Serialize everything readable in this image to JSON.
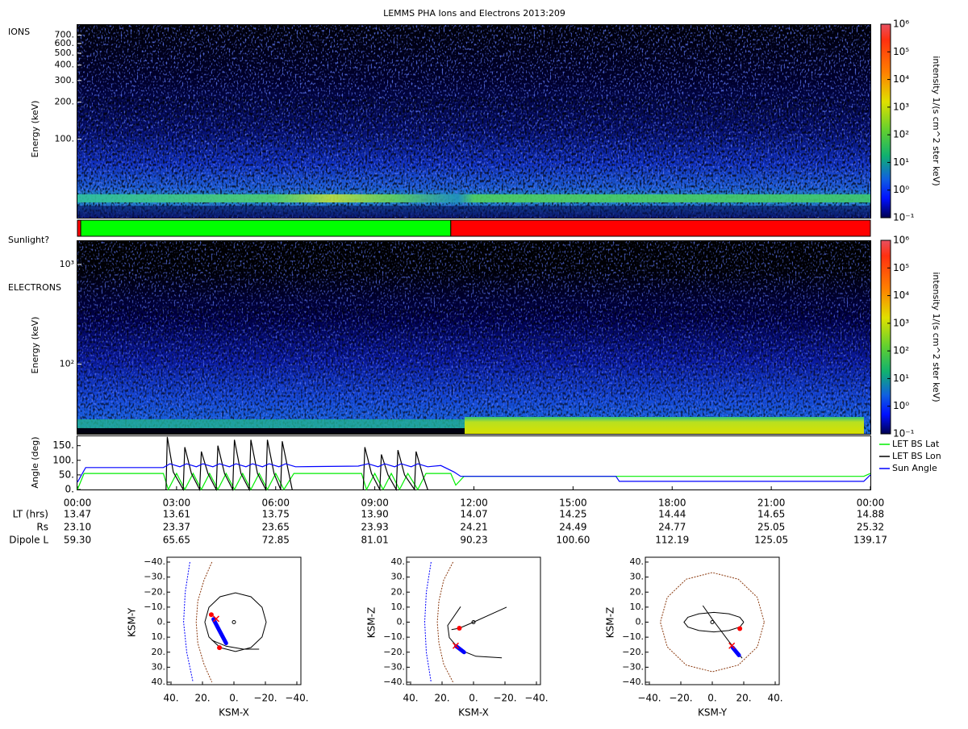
{
  "chart_data": [
    {
      "type": "heatmap",
      "title": "LEMMS PHA Ions and Electrons  2013:209",
      "label": "IONS",
      "ylabel": "Energy (keV)",
      "log_y": true,
      "xlim": [
        0,
        24
      ],
      "ylim": [
        23,
        860
      ],
      "yticks": [
        {
          "value": 100,
          "label": "100."
        },
        {
          "value": 200,
          "label": "200."
        },
        {
          "value": 300,
          "label": "300."
        },
        {
          "value": 400,
          "label": "400."
        },
        {
          "value": 500,
          "label": "500."
        },
        {
          "value": 600,
          "label": "600."
        },
        {
          "value": 700,
          "label": "700."
        }
      ],
      "colorbar": {
        "label": "intensity 1/(s cm^2 ster keV)",
        "log": true,
        "zlim": [
          0.1,
          1000000
        ],
        "zticks": [
          {
            "value": 0.1,
            "label": "10⁻¹"
          },
          {
            "value": 1,
            "label": "10⁰"
          },
          {
            "value": 10,
            "label": "10¹"
          },
          {
            "value": 100,
            "label": "10²"
          },
          {
            "value": 1000,
            "label": "10³"
          },
          {
            "value": 10000,
            "label": "10⁴"
          },
          {
            "value": 100000,
            "label": "10⁵"
          },
          {
            "value": 1000000,
            "label": "10⁶"
          }
        ]
      }
    },
    {
      "type": "timeline",
      "label": "Sunlight?",
      "xlim": [
        0,
        24
      ],
      "segments": [
        {
          "x": [
            0,
            0.1
          ],
          "color": "#ff0000"
        },
        {
          "x": [
            0.1,
            11.3
          ],
          "color": "#00ff00"
        },
        {
          "x": [
            11.3,
            24
          ],
          "color": "#ff0000"
        }
      ]
    },
    {
      "type": "heatmap",
      "label": "ELECTRONS",
      "ylabel": "Energy (keV)",
      "log_y": true,
      "xlim": [
        0,
        24
      ],
      "ylim": [
        20,
        1745
      ],
      "yticks": [
        {
          "value": 100,
          "label": "10²"
        },
        {
          "value": 1000,
          "label": "10³"
        }
      ],
      "colorbar": {
        "label": "intensity 1/(s cm^2 ster keV)",
        "log": true,
        "zlim": [
          0.1,
          1000000
        ],
        "zticks": [
          {
            "value": 0.1,
            "label": "10⁻¹"
          },
          {
            "value": 1,
            "label": "10⁰"
          },
          {
            "value": 10,
            "label": "10¹"
          },
          {
            "value": 100,
            "label": "10²"
          },
          {
            "value": 1000,
            "label": "10³"
          },
          {
            "value": 10000,
            "label": "10⁴"
          },
          {
            "value": 100000,
            "label": "10⁵"
          },
          {
            "value": 1000000,
            "label": "10⁶"
          }
        ]
      }
    },
    {
      "type": "line",
      "ylabel": "Angle (deg)",
      "xlim": [
        0,
        24
      ],
      "ylim": [
        0,
        185
      ],
      "yticks": [
        {
          "value": 0,
          "label": "0."
        },
        {
          "value": 50,
          "label": "50."
        },
        {
          "value": 100,
          "label": "100."
        },
        {
          "value": 150,
          "label": "150."
        }
      ],
      "xticks": [
        {
          "value": 0,
          "label": "00:00"
        },
        {
          "value": 3,
          "label": "03:00"
        },
        {
          "value": 6,
          "label": "06:00"
        },
        {
          "value": 9,
          "label": "09:00"
        },
        {
          "value": 12,
          "label": "12:00"
        },
        {
          "value": 15,
          "label": "15:00"
        },
        {
          "value": 18,
          "label": "18:00"
        },
        {
          "value": 21,
          "label": "21:00"
        },
        {
          "value": 24,
          "label": "00:00"
        }
      ],
      "legend": "right",
      "series": [
        {
          "name": "LET BS Lat",
          "color": "#00ee00",
          "x": [
            0,
            0.2,
            2.6,
            2.75,
            3.0,
            3.25,
            3.5,
            3.75,
            4.0,
            4.25,
            4.5,
            4.75,
            5.0,
            5.25,
            5.5,
            5.75,
            6.0,
            6.25,
            6.55,
            8.6,
            8.75,
            9.0,
            9.25,
            9.5,
            9.75,
            10.0,
            10.3,
            10.55,
            11.3,
            11.45,
            11.7,
            23.8,
            24
          ],
          "values": [
            0,
            55,
            55,
            0,
            55,
            0,
            55,
            0,
            55,
            0,
            55,
            0,
            55,
            0,
            55,
            0,
            55,
            0,
            55,
            55,
            0,
            55,
            0,
            55,
            0,
            55,
            0,
            55,
            55,
            15,
            45,
            45,
            55
          ]
        },
        {
          "name": "LET BS Lon",
          "color": "#000000",
          "x": [
            2.68,
            2.72,
            2.9,
            3.2,
            3.25,
            3.45,
            3.7,
            3.75,
            3.95,
            4.2,
            4.25,
            4.45,
            4.7,
            4.75,
            4.95,
            5.2,
            5.25,
            5.45,
            5.7,
            5.75,
            5.95,
            6.15,
            6.2,
            6.4,
            6.5,
            7.5,
            8.65,
            8.7,
            8.9,
            9.15,
            9.2,
            9.4,
            9.65,
            9.7,
            9.9,
            10.2,
            10.25,
            10.45,
            10.6
          ],
          "values": [
            0,
            180,
            60,
            0,
            145,
            55,
            0,
            130,
            55,
            0,
            150,
            55,
            0,
            170,
            55,
            0,
            170,
            55,
            0,
            170,
            55,
            0,
            165,
            55,
            0,
            null,
            0,
            145,
            55,
            0,
            120,
            50,
            0,
            135,
            50,
            0,
            130,
            50,
            0
          ]
        },
        {
          "name": "Sun Angle",
          "color": "#0000ff",
          "x": [
            0,
            0.25,
            2.6,
            2.8,
            3.1,
            3.3,
            3.6,
            3.8,
            4.1,
            4.3,
            4.6,
            4.8,
            5.1,
            5.3,
            5.6,
            5.8,
            6.1,
            6.3,
            6.6,
            8.5,
            8.8,
            9.1,
            9.3,
            9.6,
            9.8,
            10.1,
            10.3,
            10.6,
            11.0,
            11.4,
            11.6,
            16.3,
            16.4,
            23.8,
            24
          ],
          "values": [
            25,
            75,
            75,
            88,
            78,
            88,
            78,
            88,
            78,
            88,
            78,
            88,
            78,
            88,
            78,
            88,
            78,
            88,
            78,
            80,
            88,
            78,
            88,
            78,
            88,
            78,
            88,
            78,
            82,
            60,
            45,
            45,
            28,
            28,
            50
          ]
        }
      ]
    },
    {
      "type": "orbit",
      "xlabel": "KSM-X",
      "ylabel": "KSM-Y",
      "xlim": [
        40,
        -40
      ],
      "ylim": [
        40,
        -40
      ],
      "xticks": [
        {
          "value": 40,
          "label": "40."
        },
        {
          "value": 20,
          "label": "20."
        },
        {
          "value": 0,
          "label": "0."
        },
        {
          "value": -20,
          "label": "−20."
        },
        {
          "value": -40,
          "label": "−40."
        }
      ],
      "yticks": [
        {
          "value": -40,
          "label": "−40."
        },
        {
          "value": -30,
          "label": "−30."
        },
        {
          "value": -20,
          "label": "−20."
        },
        {
          "value": -10,
          "label": "−10."
        },
        {
          "value": 0,
          "label": "0."
        },
        {
          "value": 10,
          "label": "10."
        },
        {
          "value": 20,
          "label": "20."
        },
        {
          "value": 30,
          "label": "30."
        },
        {
          "value": 40,
          "label": "40."
        }
      ],
      "series": [
        {
          "color": "#0000ff",
          "style": "dashed",
          "x": [
            28,
            31,
            32,
            30,
            26
          ],
          "y": [
            -40,
            -20,
            0,
            20,
            40
          ]
        },
        {
          "color": "#8b3a0f",
          "style": "dashed",
          "x": [
            14,
            19,
            23,
            24,
            23,
            19,
            14
          ],
          "y": [
            -40,
            -28,
            -14,
            0,
            14,
            28,
            40
          ]
        },
        {
          "color": "#000000",
          "style": "solid",
          "x": [
            18.5,
            15.9,
            8.8,
            -1,
            -10.8,
            -17.9,
            -20.5,
            -17.9,
            -10.8,
            -1,
            8.8,
            15.9,
            18.5
          ],
          "y": [
            0,
            9.8,
            16.9,
            19.5,
            16.9,
            9.8,
            0,
            -9.8,
            -16.9,
            -19.5,
            -16.9,
            -9.8,
            0
          ]
        },
        {
          "color": "#000000",
          "style": "solid",
          "x": [
            14,
            5,
            -6,
            -16
          ],
          "y": [
            12,
            16,
            18,
            18
          ]
        },
        {
          "color": "#0000ff",
          "style": "thick",
          "x": [
            13,
            9,
            5
          ],
          "y": [
            -2,
            6,
            14
          ]
        }
      ],
      "markers": [
        {
          "symbol": "dot",
          "color": "#ff0000",
          "x": 14.4,
          "y": -5
        },
        {
          "symbol": "dot",
          "color": "#ff0000",
          "x": 9.2,
          "y": 17
        },
        {
          "symbol": "x",
          "color": "#ff0000",
          "x": 11.3,
          "y": -2.2
        }
      ]
    },
    {
      "type": "orbit",
      "xlabel": "KSM-X",
      "ylabel": "KSM-Z",
      "xlim": [
        40,
        -40
      ],
      "ylim": [
        -40,
        40
      ],
      "xticks": [
        {
          "value": 40,
          "label": "40."
        },
        {
          "value": 20,
          "label": "20."
        },
        {
          "value": 0,
          "label": "0."
        },
        {
          "value": -20,
          "label": "−20."
        },
        {
          "value": -40,
          "label": "−40."
        }
      ],
      "yticks": [
        {
          "value": -40,
          "label": "−40."
        },
        {
          "value": -30,
          "label": "−30."
        },
        {
          "value": -20,
          "label": "−20."
        },
        {
          "value": -10,
          "label": "−10."
        },
        {
          "value": 0,
          "label": "0."
        },
        {
          "value": 10,
          "label": "10."
        },
        {
          "value": 20,
          "label": "20."
        },
        {
          "value": 30,
          "label": "30."
        },
        {
          "value": 40,
          "label": "40."
        }
      ],
      "series": [
        {
          "color": "#0000ff",
          "style": "dashed",
          "x": [
            27,
            30,
            31,
            30,
            27
          ],
          "y": [
            40,
            20,
            0,
            -20,
            -40
          ]
        },
        {
          "color": "#8b3a0f",
          "style": "dashed",
          "x": [
            13,
            19,
            22,
            23,
            22,
            19,
            13
          ],
          "y": [
            40,
            28,
            14,
            0,
            -14,
            -28,
            -40
          ]
        },
        {
          "color": "#000000",
          "style": "solid",
          "x": [
            8.2,
            16.4,
            15.4,
            8.7,
            -1.5,
            -18
          ],
          "y": [
            10.3,
            -2.2,
            -10.3,
            -18.4,
            -22.7,
            -23.8
          ]
        },
        {
          "color": "#000000",
          "style": "solid",
          "x": [
            14,
            9,
            0,
            -21
          ],
          "y": [
            -5,
            -4,
            0,
            10
          ]
        },
        {
          "color": "#0000ff",
          "style": "thick",
          "x": [
            11,
            6
          ],
          "y": [
            -16,
            -20
          ]
        }
      ],
      "markers": [
        {
          "symbol": "dot",
          "color": "#ff0000",
          "x": 9,
          "y": -4
        },
        {
          "symbol": "x",
          "color": "#ff0000",
          "x": 11.3,
          "y": -15.7
        }
      ]
    },
    {
      "type": "orbit",
      "xlabel": "KSM-Y",
      "ylabel": "KSM-Z",
      "xlim": [
        -40,
        40
      ],
      "ylim": [
        -40,
        40
      ],
      "xticks": [
        {
          "value": -40,
          "label": "−40."
        },
        {
          "value": -20,
          "label": "−20."
        },
        {
          "value": 0,
          "label": "0."
        },
        {
          "value": 20,
          "label": "20."
        },
        {
          "value": 40,
          "label": "40."
        }
      ],
      "yticks": [
        {
          "value": -40,
          "label": "−40."
        },
        {
          "value": -30,
          "label": "−30."
        },
        {
          "value": -20,
          "label": "−20."
        },
        {
          "value": -10,
          "label": "−10."
        },
        {
          "value": 0,
          "label": "0."
        },
        {
          "value": 10,
          "label": "10."
        },
        {
          "value": 20,
          "label": "20."
        },
        {
          "value": 30,
          "label": "30."
        },
        {
          "value": 40,
          "label": "40."
        }
      ],
      "series": [
        {
          "color": "#8b3a0f",
          "style": "dashed",
          "x": [
            33,
            28.6,
            16.5,
            0,
            -16.5,
            -28.6,
            -33,
            -28.6,
            -16.5,
            0,
            16.5,
            28.6,
            33
          ],
          "y": [
            0,
            16.5,
            28.6,
            33,
            28.6,
            16.5,
            0,
            -16.5,
            -28.6,
            -33,
            -28.6,
            -16.5,
            0
          ]
        },
        {
          "color": "#000000",
          "style": "solid",
          "x": [
            20,
            17.5,
            10.5,
            1,
            -8.5,
            -15.5,
            -18,
            -15.5,
            -8.5,
            1,
            10.5,
            17.5,
            20
          ],
          "y": [
            0,
            3.3,
            5.6,
            6.5,
            5.6,
            3.3,
            0,
            -3.3,
            -5.6,
            -6.5,
            -5.6,
            -3.3,
            0
          ]
        },
        {
          "color": "#000000",
          "style": "solid",
          "x": [
            -6,
            0,
            10,
            19
          ],
          "y": [
            11,
            2,
            -12,
            -24
          ]
        },
        {
          "color": "#0000ff",
          "style": "thick",
          "x": [
            13,
            17
          ],
          "y": [
            -17,
            -22
          ]
        }
      ],
      "markers": [
        {
          "symbol": "dot",
          "color": "#ff0000",
          "x": 17.5,
          "y": -4.3
        },
        {
          "symbol": "x",
          "color": "#ff0000",
          "x": 12.4,
          "y": -15.7
        }
      ]
    }
  ],
  "ephemeris": {
    "rows": [
      {
        "label": "LT (hrs)",
        "values": [
          "13.47",
          "13.61",
          "13.75",
          "13.90",
          "14.07",
          "14.25",
          "14.44",
          "14.65",
          "14.88"
        ]
      },
      {
        "label": "Rs",
        "values": [
          "23.10",
          "23.37",
          "23.65",
          "23.93",
          "24.21",
          "24.49",
          "24.77",
          "25.05",
          "25.32"
        ]
      },
      {
        "label": "Dipole L",
        "values": [
          "59.30",
          "65.65",
          "72.85",
          "81.01",
          "90.23",
          "100.60",
          "112.19",
          "125.05",
          "139.17"
        ]
      }
    ]
  }
}
